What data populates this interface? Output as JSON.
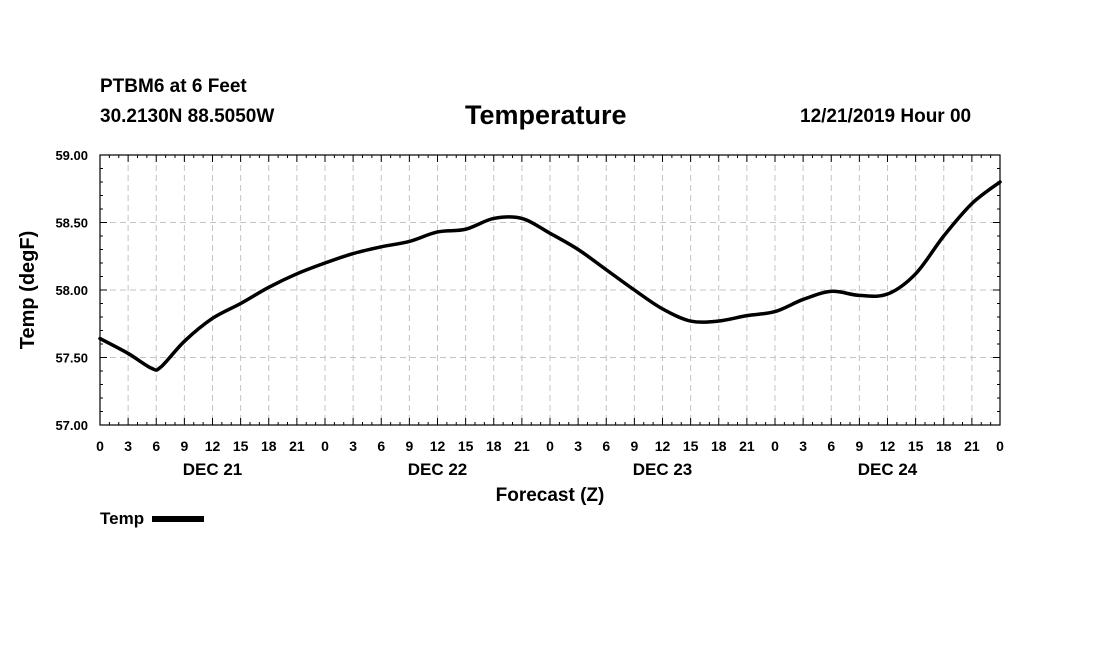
{
  "header": {
    "station": "PTBM6 at 6 Feet",
    "coords": "30.2130N 88.5050W",
    "title": "Temperature",
    "datetime": "12/21/2019 Hour 00"
  },
  "legend": {
    "label": "Temp"
  },
  "chart_data": {
    "type": "line",
    "title": "Temperature",
    "xlabel": "Forecast (Z)",
    "ylabel": "Temp (degF)",
    "ylim": [
      57.0,
      59.0
    ],
    "yticks": [
      "57.00",
      "57.50",
      "58.00",
      "58.50",
      "59.00"
    ],
    "xlim": [
      0,
      96
    ],
    "xticks": [
      "0",
      "3",
      "6",
      "9",
      "12",
      "15",
      "18",
      "21",
      "0",
      "3",
      "6",
      "9",
      "12",
      "15",
      "18",
      "21",
      "0",
      "3",
      "6",
      "9",
      "12",
      "15",
      "18",
      "21",
      "0",
      "3",
      "6",
      "9",
      "12",
      "15",
      "18",
      "21",
      "0"
    ],
    "day_labels": [
      {
        "label": "DEC 21",
        "hour": 12
      },
      {
        "label": "DEC 22",
        "hour": 36
      },
      {
        "label": "DEC 23",
        "hour": 60
      },
      {
        "label": "DEC 24",
        "hour": 84
      }
    ],
    "grid": true,
    "series": [
      {
        "name": "Temp",
        "color": "#000000",
        "x": [
          0,
          3,
          5.5,
          6.5,
          9,
          12,
          15,
          18,
          21,
          24,
          27,
          30,
          33,
          36,
          39,
          42,
          45,
          48,
          51,
          54,
          57,
          60,
          63,
          66,
          69,
          72,
          75,
          78,
          81,
          84,
          87,
          90,
          93,
          96
        ],
        "y": [
          57.64,
          57.53,
          57.42,
          57.43,
          57.62,
          57.79,
          57.9,
          58.02,
          58.12,
          58.2,
          58.27,
          58.32,
          58.36,
          58.43,
          58.45,
          58.53,
          58.53,
          58.42,
          58.3,
          58.15,
          58.0,
          57.86,
          57.77,
          57.77,
          57.81,
          57.84,
          57.93,
          57.99,
          57.96,
          57.97,
          58.12,
          58.4,
          58.64,
          58.8
        ]
      }
    ]
  }
}
